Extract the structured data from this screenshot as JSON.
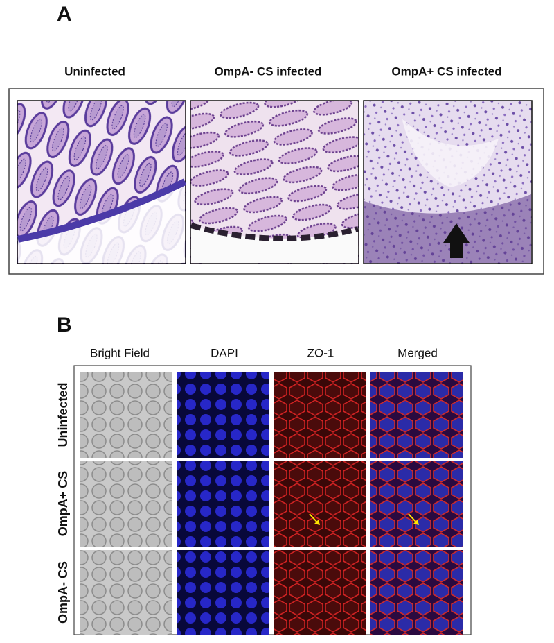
{
  "panels": [
    {
      "label": "A",
      "columns": [
        "Uninfected",
        "OmpA- CS infected",
        "OmpA+ CS infected"
      ]
    },
    {
      "label": "B",
      "columns": [
        "Bright Field",
        "DAPI",
        "ZO-1",
        "Merged"
      ],
      "rows": [
        "Uninfected",
        "OmpA+ CS",
        "OmpA- CS"
      ]
    }
  ]
}
